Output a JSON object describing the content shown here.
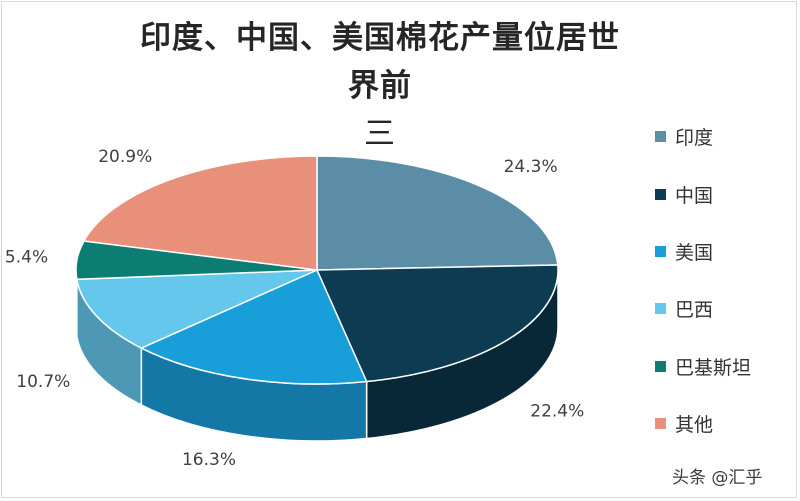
{
  "chart_data": {
    "type": "pie",
    "title": "印度、中国、美国棉花产量位居世界前三",
    "title_line1": "印度、中国、美国棉花产量位居世界前",
    "title_line2": "三",
    "three_d": true,
    "legend_position": "right",
    "categories": [
      "印度",
      "中国",
      "美国",
      "巴西",
      "巴基斯坦",
      "其他"
    ],
    "values": [
      24.3,
      22.4,
      16.3,
      10.7,
      5.4,
      20.9
    ],
    "data_labels": [
      "24.3%",
      "22.4%",
      "16.3%",
      "10.7%",
      "5.4%",
      "20.9%"
    ],
    "colors": [
      "#5b8ea6",
      "#0d3b52",
      "#189fd9",
      "#66c7ec",
      "#0c7d72",
      "#e8907a"
    ],
    "side_colors": [
      "#466f82",
      "#082838",
      "#1478a6",
      "#4d98b4",
      "#085c55",
      "#b06e5d"
    ]
  },
  "watermark": "头条 @汇乎"
}
